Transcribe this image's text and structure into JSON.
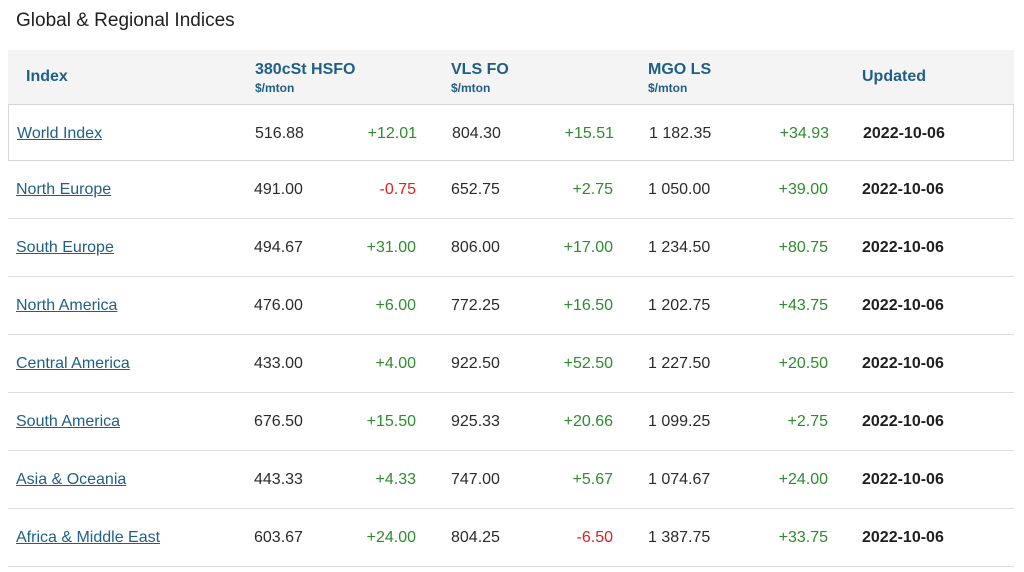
{
  "title": "Global & Regional Indices",
  "header": {
    "index": "Index",
    "col1": {
      "label": "380cSt HSFO",
      "unit": "$/mton"
    },
    "col2": {
      "label": "VLS FO",
      "unit": "$/mton"
    },
    "col3": {
      "label": "MGO LS",
      "unit": "$/mton"
    },
    "updated": "Updated"
  },
  "rows": [
    {
      "name": "World Index",
      "p1": "516.88",
      "c1": "+12.01",
      "p2": "804.30",
      "c2": "+15.51",
      "p3": "1 182.35",
      "c3": "+34.93",
      "date": "2022-10-06"
    },
    {
      "name": "North Europe",
      "p1": "491.00",
      "c1": "-0.75",
      "p2": "652.75",
      "c2": "+2.75",
      "p3": "1 050.00",
      "c3": "+39.00",
      "date": "2022-10-06"
    },
    {
      "name": "South Europe",
      "p1": "494.67",
      "c1": "+31.00",
      "p2": "806.00",
      "c2": "+17.00",
      "p3": "1 234.50",
      "c3": "+80.75",
      "date": "2022-10-06"
    },
    {
      "name": "North America",
      "p1": "476.00",
      "c1": "+6.00",
      "p2": "772.25",
      "c2": "+16.50",
      "p3": "1 202.75",
      "c3": "+43.75",
      "date": "2022-10-06"
    },
    {
      "name": "Central America",
      "p1": "433.00",
      "c1": "+4.00",
      "p2": "922.50",
      "c2": "+52.50",
      "p3": "1 227.50",
      "c3": "+20.50",
      "date": "2022-10-06"
    },
    {
      "name": "South America",
      "p1": "676.50",
      "c1": "+15.50",
      "p2": "925.33",
      "c2": "+20.66",
      "p3": "1 099.25",
      "c3": "+2.75",
      "date": "2022-10-06"
    },
    {
      "name": "Asia & Oceania",
      "p1": "443.33",
      "c1": "+4.33",
      "p2": "747.00",
      "c2": "+5.67",
      "p3": "1 074.67",
      "c3": "+24.00",
      "date": "2022-10-06"
    },
    {
      "name": "Africa & Middle East",
      "p1": "603.67",
      "c1": "+24.00",
      "p2": "804.25",
      "c2": "-6.50",
      "p3": "1 387.75",
      "c3": "+33.75",
      "date": "2022-10-06"
    }
  ],
  "colors": {
    "positive": "#2e8b2e",
    "negative": "#e02020",
    "link": "#1f5f86"
  }
}
